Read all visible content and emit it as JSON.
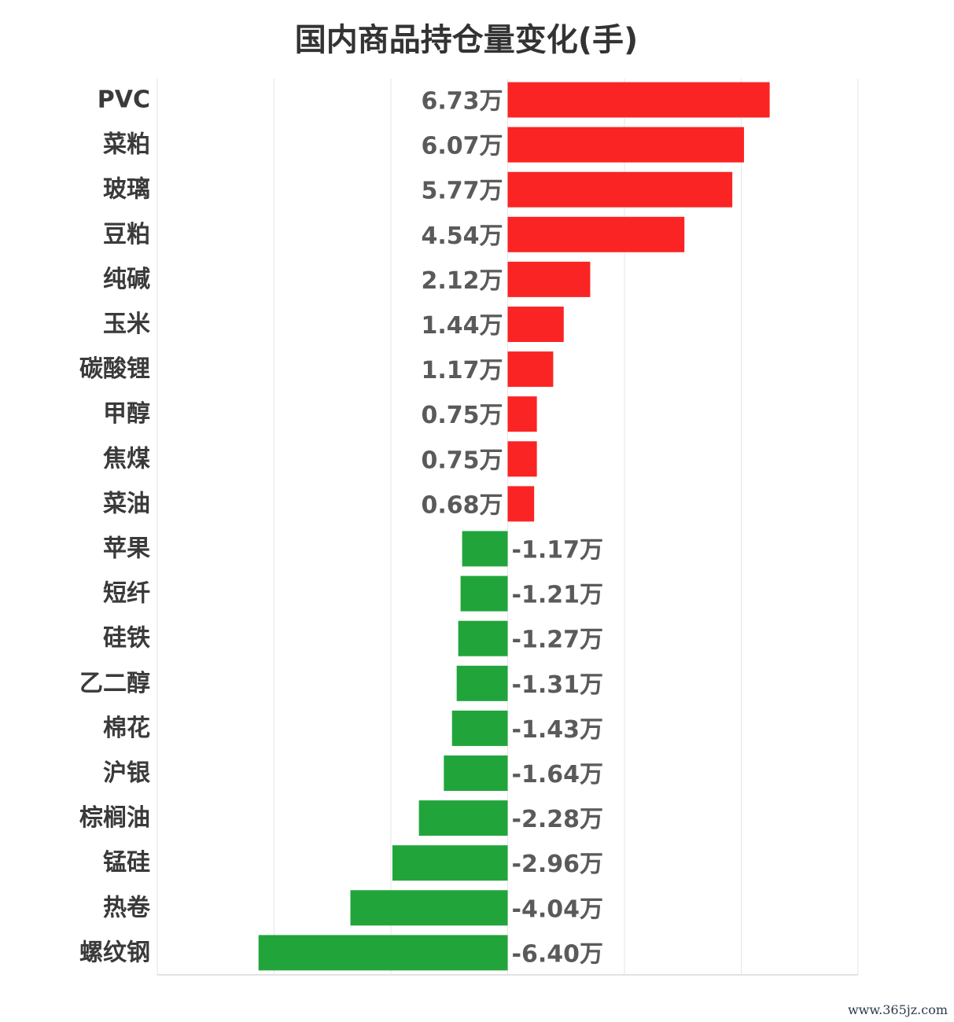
{
  "chart_data": {
    "type": "bar",
    "orientation": "horizontal",
    "title": "国内商品持仓量变化(手)",
    "categories": [
      "PVC",
      "菜粕",
      "玻璃",
      "豆粕",
      "纯碱",
      "玉米",
      "碳酸锂",
      "甲醇",
      "焦煤",
      "菜油",
      "苹果",
      "短纤",
      "硅铁",
      "乙二醇",
      "棉花",
      "沪银",
      "棕榈油",
      "锰硅",
      "热卷",
      "螺纹钢"
    ],
    "values": [
      6.73,
      6.07,
      5.77,
      4.54,
      2.12,
      1.44,
      1.17,
      0.75,
      0.75,
      0.68,
      -1.17,
      -1.21,
      -1.27,
      -1.31,
      -1.43,
      -1.64,
      -2.28,
      -2.96,
      -4.04,
      -6.4
    ],
    "value_labels": [
      "6.73万",
      "6.07万",
      "5.77万",
      "4.54万",
      "2.12万",
      "1.44万",
      "1.17万",
      "0.75万",
      "0.75万",
      "0.68万",
      "-1.17万",
      "-1.21万",
      "-1.27万",
      "-1.31万",
      "-1.43万",
      "-1.64万",
      "-2.28万",
      "-2.96万",
      "-4.04万",
      "-6.40万"
    ],
    "xlim": [
      -9,
      9
    ],
    "grid": true,
    "colors": {
      "positive": "#fb2424",
      "negative": "#21a53b"
    }
  },
  "watermark": "www.365jz.com"
}
